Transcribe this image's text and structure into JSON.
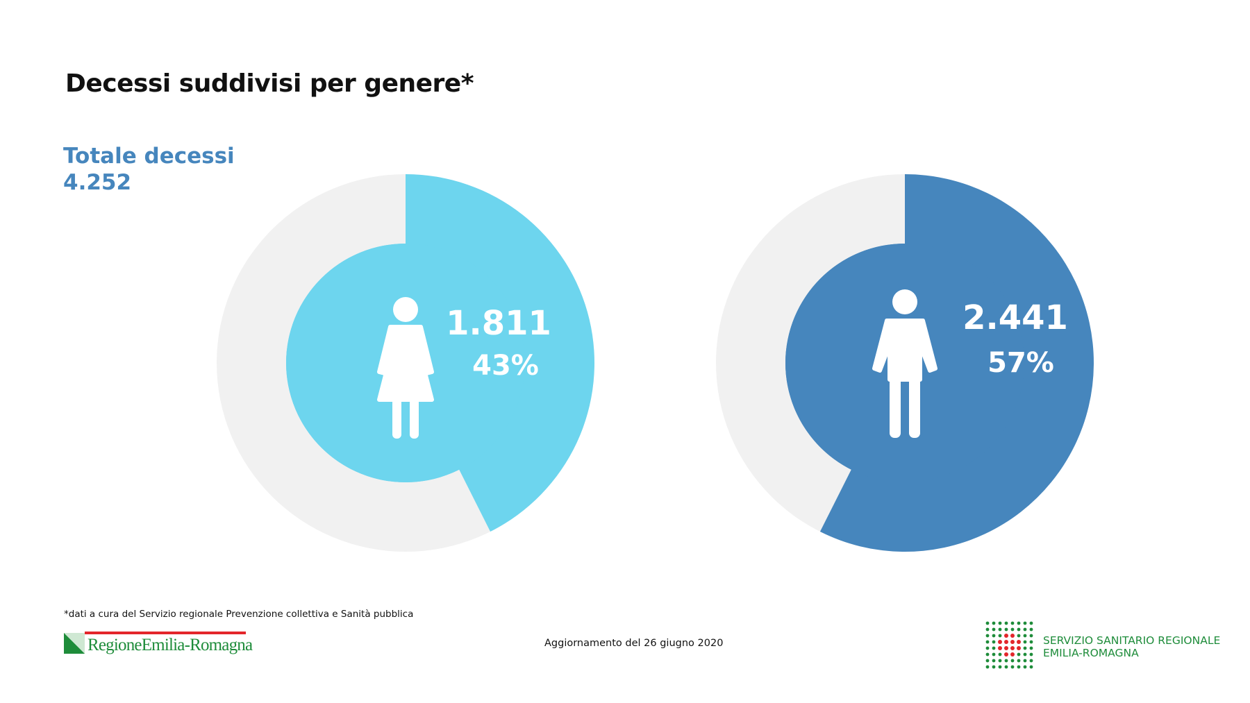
{
  "title": "Decessi suddivisi per genere*",
  "total": {
    "label": "Totale decessi",
    "value": "4.252"
  },
  "chart_data": {
    "type": "pie",
    "total": 4252,
    "series": [
      {
        "value": 1811,
        "percent": 43,
        "value_label": "1.811",
        "percent_label": "43%",
        "color": "#6dd5ee",
        "icon": "female-figure-icon"
      },
      {
        "value": 2441,
        "percent": 57,
        "value_label": "2.441",
        "percent_label": "57%",
        "color": "#4686bd",
        "icon": "male-figure-icon"
      }
    ],
    "background_color": "#f1f1f1",
    "legend": "none"
  },
  "footnote": "*dati a cura del Servizio regionale Prevenzione collettiva e Sanità pubblica",
  "update": "Aggiornamento del 26 giugno 2020",
  "logos": {
    "regione": "RegioneEmilia-Romagna",
    "servizio_line1": "SERVIZIO SANITARIO REGIONALE",
    "servizio_line2": "EMILIA-ROMAGNA"
  }
}
